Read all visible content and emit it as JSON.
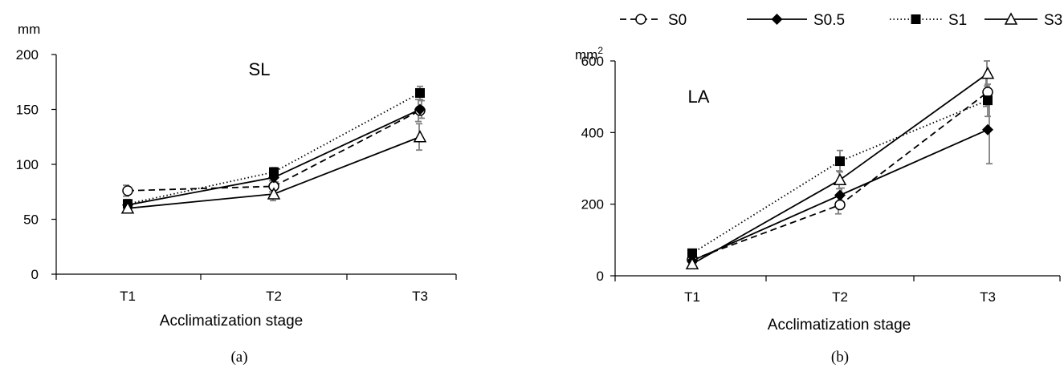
{
  "legend": {
    "placement": "top-right",
    "entries": [
      {
        "name": "S0",
        "dash": "dashed",
        "marker": "circle-open"
      },
      {
        "name": "S0.5",
        "dash": "solid",
        "marker": "diamond-filled"
      },
      {
        "name": "S1",
        "dash": "dotted",
        "marker": "square-filled"
      },
      {
        "name": "S3",
        "dash": "solid",
        "marker": "triangle-open"
      }
    ]
  },
  "colors": {
    "lines": "#000000",
    "error_bars": "#808080",
    "axis": "#000000"
  },
  "chart_data": [
    {
      "type": "line",
      "panel_label": "(a)",
      "title": "SL",
      "unit": "mm",
      "xlabel": "Acclimatization stage",
      "ylabel": "",
      "categories": [
        "T1",
        "T2",
        "T3"
      ],
      "ylim": [
        0,
        200
      ],
      "yticks": [
        0,
        50,
        100,
        150,
        200
      ],
      "grid": false,
      "series": [
        {
          "name": "S0",
          "values": [
            76,
            80,
            149
          ],
          "errors": [
            5,
            5,
            10
          ]
        },
        {
          "name": "S0.5",
          "values": [
            63,
            88,
            150
          ],
          "errors": [
            3,
            4,
            8
          ]
        },
        {
          "name": "S1",
          "values": [
            64,
            93,
            165
          ],
          "errors": [
            4,
            4,
            6
          ]
        },
        {
          "name": "S3",
          "values": [
            60,
            73,
            125
          ],
          "errors": [
            3,
            6,
            12
          ]
        }
      ]
    },
    {
      "type": "line",
      "panel_label": "(b)",
      "title": "LA",
      "unit_base": "mm",
      "unit_sup": "2",
      "xlabel": "Acclimatization stage",
      "ylabel": "",
      "categories": [
        "T1",
        "T2",
        "T3"
      ],
      "ylim": [
        0,
        600
      ],
      "yticks": [
        0,
        200,
        400,
        600
      ],
      "grid": false,
      "series": [
        {
          "name": "S0",
          "values": [
            45,
            198,
            513
          ],
          "errors": [
            5,
            25,
            40
          ]
        },
        {
          "name": "S0.5",
          "values": [
            42,
            225,
            408
          ],
          "errors": [
            5,
            20,
            95
          ]
        },
        {
          "name": "S1",
          "values": [
            63,
            320,
            490
          ],
          "errors": [
            6,
            30,
            45
          ]
        },
        {
          "name": "S3",
          "values": [
            33,
            268,
            565
          ],
          "errors": [
            4,
            25,
            35
          ]
        }
      ]
    }
  ]
}
